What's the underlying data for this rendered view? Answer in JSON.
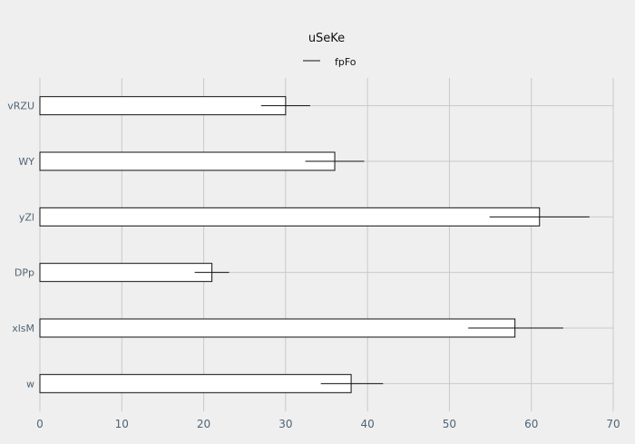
{
  "chart_data": {
    "type": "bar",
    "orientation": "horizontal",
    "title": "uSeKe",
    "categories": [
      "w",
      "xlsM",
      "DPp",
      "yZl",
      "WY",
      "vRZU"
    ],
    "series": [
      {
        "name": "fpFo",
        "values": [
          38,
          58,
          21,
          61,
          36,
          30
        ],
        "error_low": [
          34.3,
          52.3,
          18.9,
          54.9,
          32.4,
          27.0
        ],
        "error_high": [
          41.9,
          63.9,
          23.1,
          67.1,
          39.6,
          33.0
        ]
      }
    ],
    "xlim": [
      0,
      70
    ],
    "xticks": [
      0,
      10,
      20,
      30,
      40,
      50,
      60,
      70
    ],
    "grid": true,
    "legend": "top-center",
    "colors": {
      "background": "#efefef",
      "bar_fill": "#ffffff",
      "bar_stroke": "#111111",
      "grid": "#c9c9c9",
      "tick_text": "#4f6475"
    }
  }
}
